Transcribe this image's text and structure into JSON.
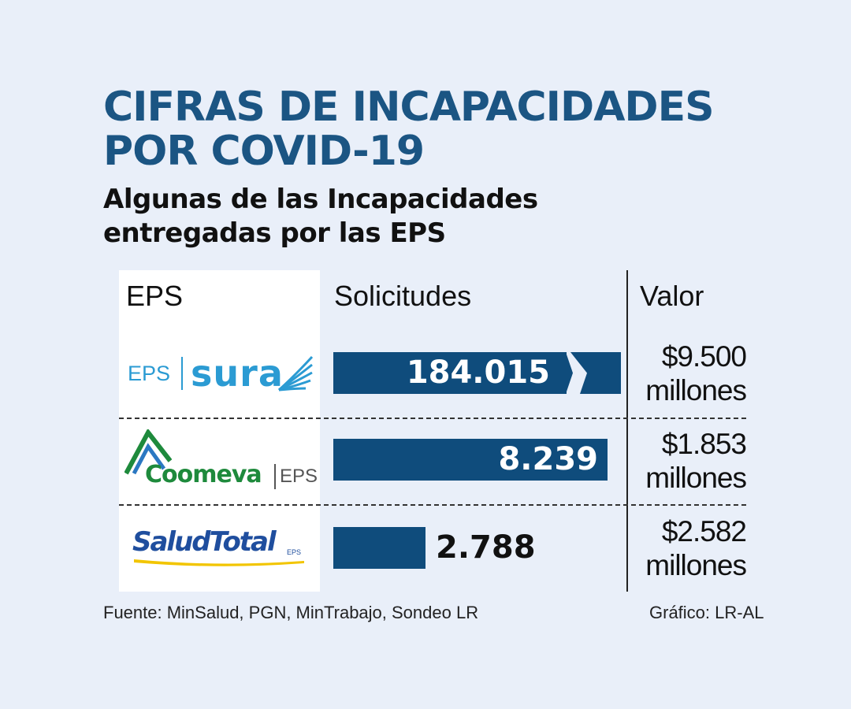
{
  "title_line1": "CIFRAS DE INCAPACIDADES",
  "title_line2": "POR COVID-19",
  "subtitle_line1": "Algunas de las Incapacidades",
  "subtitle_line2": "entregadas por las EPS",
  "columns": {
    "eps": "EPS",
    "solicitudes": "Solicitudes",
    "valor": "Valor"
  },
  "logos": {
    "sura": {
      "prefix": "EPS",
      "name": "sura"
    },
    "coomeva": {
      "name": "Coomeva",
      "suffix": "EPS"
    },
    "saludtotal": {
      "name": "SaludTotal",
      "suffix": "EPS"
    }
  },
  "rows": [
    {
      "eps": "EPS SURA",
      "solicitudes_label": "184.015",
      "valor_line1": "$9.500",
      "valor_line2": "millones"
    },
    {
      "eps": "Coomeva EPS",
      "solicitudes_label": "8.239",
      "valor_line1": "$1.853",
      "valor_line2": "millones"
    },
    {
      "eps": "Salud Total EPS",
      "solicitudes_label": "2.788",
      "valor_line1": "$2.582",
      "valor_line2": "millones"
    }
  ],
  "chart_data": {
    "type": "bar",
    "orientation": "horizontal",
    "categories": [
      "EPS SURA",
      "Coomeva EPS",
      "Salud Total EPS"
    ],
    "values": [
      184015,
      8239,
      2788
    ],
    "axis_break": true,
    "valor_millones": [
      9500,
      1853,
      2582
    ],
    "bar_color": "#0f4c7c"
  },
  "colors": {
    "title": "#1b5583",
    "bar": "#0f4c7c",
    "background": "#e9eff9",
    "sura_blue": "#2b9bd3",
    "coomeva_green": "#1e8a3c",
    "saludtotal_blue": "#1f4e9e",
    "saludtotal_yellow": "#f2c500"
  },
  "footer": {
    "source": "Fuente: MinSalud, PGN, MinTrabajo, Sondeo LR",
    "credit": "Gráfico: LR-AL"
  }
}
